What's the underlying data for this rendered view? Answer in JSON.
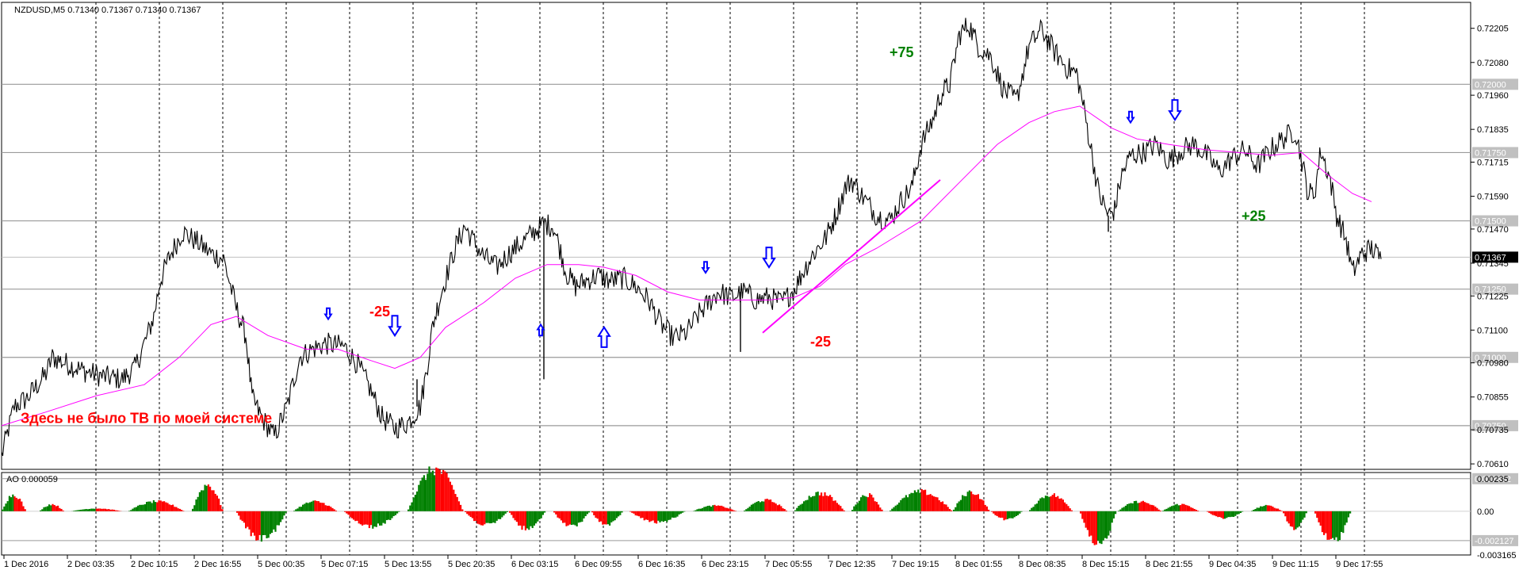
{
  "header": {
    "symbol_info": "NZDUSD,M5  0.71340 0.71367 0.71340 0.71367"
  },
  "indicator": {
    "label": "AO  0.000059"
  },
  "chart_data": {
    "type": "line",
    "symbol": "NZDUSD,M5",
    "price_axis": {
      "ymin": 0.7059,
      "ymax": 0.723,
      "ticks": [
        "0.72205",
        "0.72080",
        "0.71960",
        "0.71835",
        "0.71715",
        "0.71590",
        "0.71470",
        "0.71345",
        "0.71225",
        "0.71100",
        "0.70980",
        "0.70855",
        "0.70735",
        "0.70610"
      ]
    },
    "levels": [
      {
        "label": "0.72000",
        "value": 0.72
      },
      {
        "label": "0.71750",
        "value": 0.7175
      },
      {
        "label": "0.71500",
        "value": 0.715
      },
      {
        "label": "0.71250",
        "value": 0.7125
      },
      {
        "label": "0.71000",
        "value": 0.71
      },
      {
        "label": "0.70750",
        "value": 0.7075
      }
    ],
    "current_price": {
      "label": "0.71367",
      "value": 0.71367
    },
    "x_labels": [
      "1 Dec 2016",
      "2 Dec 03:35",
      "2 Dec 10:15",
      "2 Dec 16:55",
      "5 Dec 00:35",
      "5 Dec 07:15",
      "5 Dec 13:55",
      "5 Dec 20:35",
      "6 Dec 03:15",
      "6 Dec 09:55",
      "6 Dec 16:35",
      "6 Dec 23:15",
      "7 Dec 05:55",
      "7 Dec 12:35",
      "7 Dec 19:15",
      "8 Dec 01:55",
      "8 Dec 08:35",
      "8 Dec 15:15",
      "8 Dec 21:55",
      "9 Dec 04:35",
      "9 Dec 11:15",
      "9 Dec 17:55"
    ],
    "price_path": [
      [
        0,
        0.7064
      ],
      [
        4,
        0.7082
      ],
      [
        8,
        0.7085
      ],
      [
        14,
        0.7094
      ],
      [
        16,
        0.71
      ],
      [
        20,
        0.7098
      ],
      [
        26,
        0.7095
      ],
      [
        32,
        0.7093
      ],
      [
        38,
        0.7092
      ],
      [
        40,
        0.7094
      ],
      [
        42,
        0.7096
      ],
      [
        46,
        0.7108
      ],
      [
        48,
        0.7115
      ],
      [
        50,
        0.7128
      ],
      [
        53,
        0.7137
      ],
      [
        57,
        0.7146
      ],
      [
        62,
        0.7142
      ],
      [
        66,
        0.7138
      ],
      [
        70,
        0.7136
      ],
      [
        74,
        0.7118
      ],
      [
        77,
        0.7108
      ],
      [
        79,
        0.7085
      ],
      [
        82,
        0.7078
      ],
      [
        86,
        0.7071
      ],
      [
        90,
        0.7082
      ],
      [
        94,
        0.71
      ],
      [
        98,
        0.7103
      ],
      [
        102,
        0.7105
      ],
      [
        108,
        0.7104
      ],
      [
        112,
        0.7098
      ],
      [
        116,
        0.7089
      ],
      [
        120,
        0.7078
      ],
      [
        124,
        0.7074
      ],
      [
        128,
        0.7076
      ],
      [
        132,
        0.7082
      ],
      [
        134,
        0.7095
      ],
      [
        136,
        0.7112
      ],
      [
        139,
        0.7125
      ],
      [
        143,
        0.714
      ],
      [
        146,
        0.7148
      ],
      [
        148,
        0.7144
      ],
      [
        152,
        0.7137
      ],
      [
        156,
        0.7133
      ],
      [
        160,
        0.7138
      ],
      [
        164,
        0.7142
      ],
      [
        168,
        0.7146
      ],
      [
        171,
        0.7149
      ],
      [
        174,
        0.7148
      ],
      [
        176,
        0.714
      ],
      [
        178,
        0.7131
      ],
      [
        181,
        0.7126
      ],
      [
        184,
        0.7128
      ],
      [
        188,
        0.713
      ],
      [
        192,
        0.7128
      ],
      [
        196,
        0.7129
      ],
      [
        200,
        0.7126
      ],
      [
        204,
        0.7121
      ],
      [
        208,
        0.7112
      ],
      [
        212,
        0.7107
      ],
      [
        216,
        0.7109
      ],
      [
        220,
        0.7116
      ],
      [
        223,
        0.712
      ],
      [
        226,
        0.7124
      ],
      [
        230,
        0.7122
      ],
      [
        234,
        0.7124
      ],
      [
        238,
        0.7121
      ],
      [
        242,
        0.7122
      ],
      [
        246,
        0.712
      ],
      [
        250,
        0.7125
      ],
      [
        253,
        0.7132
      ],
      [
        256,
        0.7138
      ],
      [
        260,
        0.7144
      ],
      [
        263,
        0.7152
      ],
      [
        266,
        0.7162
      ],
      [
        268,
        0.7165
      ],
      [
        272,
        0.7158
      ],
      [
        276,
        0.7152
      ],
      [
        280,
        0.715
      ],
      [
        284,
        0.7158
      ],
      [
        287,
        0.7162
      ],
      [
        290,
        0.7178
      ],
      [
        294,
        0.7188
      ],
      [
        296,
        0.7196
      ],
      [
        299,
        0.72
      ],
      [
        302,
        0.7218
      ],
      [
        305,
        0.7222
      ],
      [
        308,
        0.7214
      ],
      [
        312,
        0.721
      ],
      [
        316,
        0.7198
      ],
      [
        320,
        0.7194
      ],
      [
        324,
        0.7214
      ],
      [
        328,
        0.722
      ],
      [
        332,
        0.7212
      ],
      [
        336,
        0.7206
      ],
      [
        339,
        0.7204
      ],
      [
        341,
        0.7193
      ],
      [
        343,
        0.718
      ],
      [
        346,
        0.716
      ],
      [
        349,
        0.7152
      ],
      [
        351,
        0.7154
      ],
      [
        353,
        0.7166
      ],
      [
        356,
        0.7174
      ],
      [
        360,
        0.7175
      ],
      [
        364,
        0.7178
      ],
      [
        368,
        0.7172
      ],
      [
        372,
        0.7176
      ],
      [
        376,
        0.7178
      ],
      [
        380,
        0.7174
      ],
      [
        384,
        0.7168
      ],
      [
        388,
        0.7173
      ],
      [
        392,
        0.7176
      ],
      [
        396,
        0.717
      ],
      [
        400,
        0.7176
      ],
      [
        404,
        0.718
      ],
      [
        408,
        0.7183
      ],
      [
        410,
        0.7172
      ],
      [
        412,
        0.716
      ],
      [
        414,
        0.716
      ],
      [
        416,
        0.7176
      ],
      [
        419,
        0.7165
      ],
      [
        421,
        0.7152
      ],
      [
        424,
        0.7143
      ],
      [
        426,
        0.7131
      ],
      [
        429,
        0.7138
      ],
      [
        432,
        0.714
      ],
      [
        435,
        0.7136
      ]
    ],
    "spikes": [
      [
        131,
        0.7092
      ],
      [
        171,
        0.7092
      ],
      [
        233,
        0.7102
      ],
      [
        349,
        0.7146
      ]
    ],
    "ma_path": [
      [
        0,
        0.7075
      ],
      [
        14,
        0.708
      ],
      [
        30,
        0.7086
      ],
      [
        45,
        0.709
      ],
      [
        56,
        0.71
      ],
      [
        66,
        0.7112
      ],
      [
        74,
        0.7115
      ],
      [
        84,
        0.7108
      ],
      [
        96,
        0.7103
      ],
      [
        106,
        0.7103
      ],
      [
        116,
        0.7099
      ],
      [
        124,
        0.7096
      ],
      [
        132,
        0.71
      ],
      [
        140,
        0.7111
      ],
      [
        152,
        0.712
      ],
      [
        162,
        0.7129
      ],
      [
        172,
        0.7134
      ],
      [
        182,
        0.7134
      ],
      [
        190,
        0.7133
      ],
      [
        200,
        0.713
      ],
      [
        210,
        0.7124
      ],
      [
        220,
        0.7121
      ],
      [
        230,
        0.7121
      ],
      [
        242,
        0.7121
      ],
      [
        250,
        0.7122
      ],
      [
        258,
        0.7126
      ],
      [
        266,
        0.7134
      ],
      [
        276,
        0.714
      ],
      [
        290,
        0.715
      ],
      [
        302,
        0.7164
      ],
      [
        314,
        0.7178
      ],
      [
        324,
        0.7186
      ],
      [
        332,
        0.719
      ],
      [
        340,
        0.7192
      ],
      [
        350,
        0.7184
      ],
      [
        358,
        0.718
      ],
      [
        368,
        0.7178
      ],
      [
        380,
        0.7176
      ],
      [
        390,
        0.7175
      ],
      [
        400,
        0.7174
      ],
      [
        410,
        0.7175
      ],
      [
        418,
        0.7167
      ],
      [
        426,
        0.716
      ],
      [
        432,
        0.7157
      ]
    ],
    "trendline": [
      [
        240,
        0.7109
      ],
      [
        296,
        0.7165
      ]
    ],
    "arrows": [
      {
        "dir": "down",
        "size": "small",
        "t": 103,
        "price": 0.7114
      },
      {
        "dir": "down",
        "size": "big",
        "t": 124,
        "price": 0.7108
      },
      {
        "dir": "up",
        "size": "small",
        "t": 170,
        "price": 0.7112
      },
      {
        "dir": "up",
        "size": "big",
        "t": 190,
        "price": 0.7111
      },
      {
        "dir": "down",
        "size": "small",
        "t": 222,
        "price": 0.7131
      },
      {
        "dir": "down",
        "size": "big",
        "t": 242,
        "price": 0.7133
      },
      {
        "dir": "down",
        "size": "small",
        "t": 356,
        "price": 0.7186
      },
      {
        "dir": "down",
        "size": "big",
        "t": 370,
        "price": 0.7187
      }
    ],
    "annotations": [
      {
        "text": "Здесь не было ТВ по моей системе",
        "color": "#ff0000",
        "t": 6,
        "price": 0.7076
      },
      {
        "text": "-25",
        "color": "#ff0000",
        "t": 116,
        "price": 0.7115
      },
      {
        "text": "-25",
        "color": "#ff0000",
        "t": 255,
        "price": 0.7104
      },
      {
        "text": "+75",
        "color": "#008000",
        "t": 280,
        "price": 0.721
      },
      {
        "text": "+25",
        "color": "#008000",
        "t": 391,
        "price": 0.715
      }
    ],
    "ao": {
      "label": "AO",
      "ymin": -0.003165,
      "ymax": 0.0028,
      "ticks": [
        "0.00235",
        "0.00",
        "-0.003165"
      ],
      "levels": [
        {
          "label": "0.002352",
          "value": 0.002352
        },
        {
          "label": "-0.002127",
          "value": -0.002127
        }
      ],
      "up_color": "#008000",
      "down_color": "#ff0000",
      "waves": [
        [
          0,
          8,
          0.0012,
          6
        ],
        [
          12,
          20,
          0.0005,
          4
        ],
        [
          22,
          38,
          0.0002,
          6
        ],
        [
          40,
          58,
          0.0007,
          6
        ],
        [
          60,
          70,
          0.0019,
          5
        ],
        [
          74,
          90,
          -0.002,
          6
        ],
        [
          92,
          106,
          0.0007,
          5
        ],
        [
          108,
          126,
          -0.0011,
          6
        ],
        [
          128,
          146,
          0.003,
          6
        ],
        [
          146,
          160,
          -0.001,
          5
        ],
        [
          160,
          172,
          -0.0013,
          5
        ],
        [
          174,
          186,
          -0.0011,
          6
        ],
        [
          186,
          196,
          -0.001,
          5
        ],
        [
          198,
          216,
          -0.0008,
          6
        ],
        [
          218,
          232,
          0.0004,
          5
        ],
        [
          234,
          248,
          0.0008,
          6
        ],
        [
          250,
          266,
          0.0013,
          6
        ],
        [
          268,
          278,
          0.0012,
          6
        ],
        [
          280,
          300,
          0.0014,
          6
        ],
        [
          300,
          312,
          0.0014,
          6
        ],
        [
          312,
          322,
          -0.0006,
          5
        ],
        [
          324,
          338,
          0.0012,
          6
        ],
        [
          340,
          352,
          -0.0025,
          6
        ],
        [
          352,
          366,
          0.0007,
          6
        ],
        [
          366,
          378,
          0.0005,
          5
        ],
        [
          380,
          392,
          -0.0005,
          5
        ],
        [
          394,
          404,
          0.0004,
          5
        ],
        [
          404,
          412,
          -0.0013,
          5
        ],
        [
          414,
          426,
          -0.0022,
          6
        ]
      ]
    }
  }
}
